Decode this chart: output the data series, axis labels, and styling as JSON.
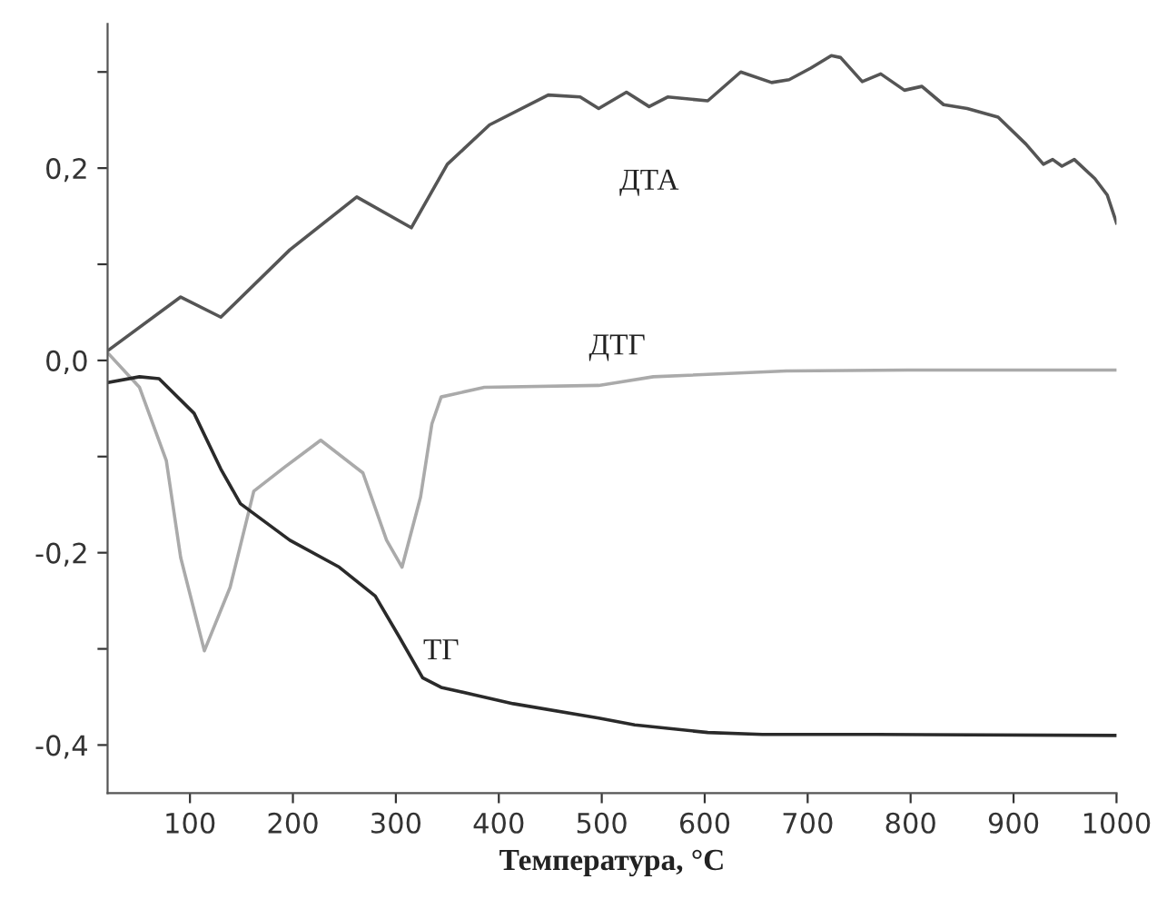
{
  "chart_data": {
    "type": "line",
    "xlabel": "Температура, °C",
    "xlim": [
      20,
      1000
    ],
    "ylim": [
      -0.45,
      0.35
    ],
    "xticks": [
      100,
      200,
      300,
      400,
      500,
      600,
      700,
      800,
      900,
      1000
    ],
    "yticks": [
      {
        "value": -0.4,
        "label": "-0,4"
      },
      {
        "value": -0.3,
        "label": null
      },
      {
        "value": -0.2,
        "label": "-0,2"
      },
      {
        "value": -0.1,
        "label": null
      },
      {
        "value": 0.0,
        "label": "0,0"
      },
      {
        "value": 0.1,
        "label": null
      },
      {
        "value": 0.2,
        "label": "0,2"
      },
      {
        "value": 0.3,
        "label": null
      }
    ],
    "grid": false,
    "marker": "none",
    "line_style": "solid",
    "series": [
      {
        "name": "ДТА",
        "color": "#555555",
        "x": [
          20,
          91,
          130,
          197,
          262,
          315,
          350,
          391,
          448,
          479,
          497,
          524,
          546,
          564,
          603,
          635,
          665,
          682,
          703,
          723,
          732,
          753,
          771,
          794,
          811,
          832,
          855,
          885,
          912,
          929,
          938,
          947,
          959,
          979,
          991,
          1000
        ],
        "values": [
          0.01,
          0.066,
          0.045,
          0.115,
          0.17,
          0.138,
          0.204,
          0.245,
          0.276,
          0.274,
          0.262,
          0.279,
          0.264,
          0.274,
          0.27,
          0.3,
          0.289,
          0.292,
          0.304,
          0.317,
          0.315,
          0.29,
          0.298,
          0.281,
          0.285,
          0.266,
          0.262,
          0.253,
          0.225,
          0.204,
          0.209,
          0.202,
          0.209,
          0.189,
          0.172,
          0.143
        ]
      },
      {
        "name": "ДТГ",
        "color": "#aaaaaa",
        "x": [
          20,
          51,
          77,
          91,
          114,
          139,
          162,
          192,
          227,
          268,
          291,
          306,
          324,
          335,
          344,
          386,
          497,
          515,
          550,
          679,
          797,
          1000
        ],
        "values": [
          0.008,
          -0.028,
          -0.104,
          -0.205,
          -0.302,
          -0.236,
          -0.136,
          -0.111,
          -0.083,
          -0.117,
          -0.187,
          -0.215,
          -0.142,
          -0.066,
          -0.038,
          -0.028,
          -0.026,
          -0.023,
          -0.017,
          -0.011,
          -0.01,
          -0.01
        ]
      },
      {
        "name": "ТГ",
        "color": "#2a2a2a",
        "x": [
          20,
          51,
          70,
          104,
          130,
          149,
          197,
          245,
          280,
          303,
          326,
          344,
          414,
          497,
          532,
          603,
          656,
          767,
          1000
        ],
        "values": [
          -0.023,
          -0.017,
          -0.019,
          -0.055,
          -0.113,
          -0.149,
          -0.187,
          -0.215,
          -0.245,
          -0.287,
          -0.33,
          -0.34,
          -0.357,
          -0.372,
          -0.379,
          -0.387,
          -0.389,
          -0.389,
          -0.39
        ]
      }
    ]
  }
}
